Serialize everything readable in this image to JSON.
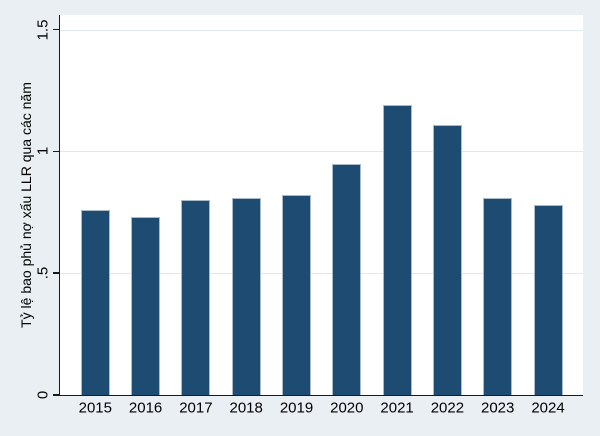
{
  "chart_data": {
    "type": "bar",
    "title": "",
    "xlabel": "",
    "ylabel": "Tỷ lệ bao phủ nợ xấu LLR qua các năm",
    "categories": [
      "2015",
      "2016",
      "2017",
      "2018",
      "2019",
      "2020",
      "2021",
      "2022",
      "2023",
      "2024"
    ],
    "values": [
      0.76,
      0.73,
      0.8,
      0.81,
      0.82,
      0.95,
      1.19,
      1.11,
      0.81,
      0.78
    ],
    "ylim": [
      0,
      1.5
    ],
    "yticks": [
      {
        "value": 0,
        "label": "0"
      },
      {
        "value": 0.5,
        "label": ".5"
      },
      {
        "value": 1,
        "label": "1"
      },
      {
        "value": 1.5,
        "label": "1.5"
      }
    ],
    "grid": true,
    "legend": "none",
    "colors": {
      "bar_fill": "#1e4b72",
      "bar_outline": "#a9bac9",
      "background": "#e9eff2",
      "plot_background": "#ffffff",
      "gridline": "#dfeaee",
      "axis": "#1a1a1a",
      "text": "#000000"
    }
  }
}
